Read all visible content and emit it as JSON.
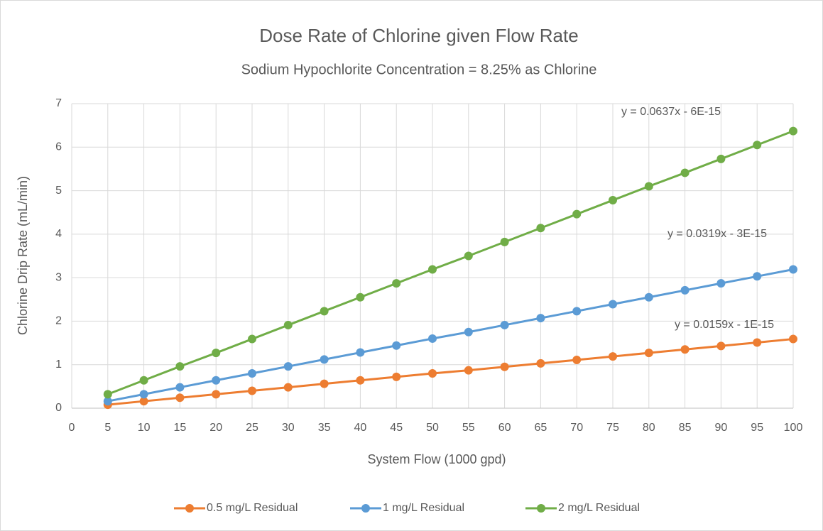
{
  "chart_data": {
    "type": "line",
    "title": "Dose Rate of Chlorine given Flow Rate",
    "subtitle": "Sodium Hypochlorite Concentration = 8.25% as Chlorine",
    "x_label": "System Flow (1000 gpd)",
    "y_label": "Chlorine Drip Rate (mL/min)",
    "x": [
      5,
      10,
      15,
      20,
      25,
      30,
      35,
      40,
      45,
      50,
      55,
      60,
      65,
      70,
      75,
      80,
      85,
      90,
      95,
      100
    ],
    "series": [
      {
        "name": "0.5 mg/L Residual",
        "color": "#ed7d31",
        "values": [
          0.08,
          0.16,
          0.24,
          0.32,
          0.4,
          0.48,
          0.56,
          0.64,
          0.72,
          0.8,
          0.87,
          0.95,
          1.03,
          1.11,
          1.19,
          1.27,
          1.35,
          1.43,
          1.51,
          1.59
        ]
      },
      {
        "name": "1 mg/L Residual",
        "color": "#5b9bd5",
        "values": [
          0.16,
          0.32,
          0.48,
          0.64,
          0.8,
          0.96,
          1.12,
          1.28,
          1.44,
          1.6,
          1.75,
          1.91,
          2.07,
          2.23,
          2.39,
          2.55,
          2.71,
          2.87,
          3.03,
          3.19
        ]
      },
      {
        "name": "2 mg/L Residual",
        "color": "#70ad47",
        "values": [
          0.32,
          0.64,
          0.96,
          1.27,
          1.59,
          1.91,
          2.23,
          2.55,
          2.87,
          3.19,
          3.5,
          3.82,
          4.14,
          4.46,
          4.78,
          5.1,
          5.41,
          5.73,
          6.05,
          6.37
        ]
      }
    ],
    "annotations": [
      "y = 0.0637x - 6E-15",
      "y = 0.0319x - 3E-15",
      "y = 0.0159x - 1E-15"
    ],
    "xlim": [
      0,
      100
    ],
    "xticks": [
      0,
      5,
      10,
      15,
      20,
      25,
      30,
      35,
      40,
      45,
      50,
      55,
      60,
      65,
      70,
      75,
      80,
      85,
      90,
      95,
      100
    ],
    "ylim": [
      0,
      7
    ],
    "yticks": [
      0,
      1,
      2,
      3,
      4,
      5,
      6,
      7
    ],
    "grid": true,
    "legend": "bottom"
  }
}
